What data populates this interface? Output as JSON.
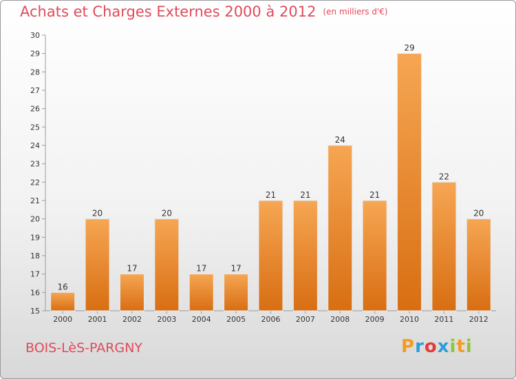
{
  "title": "Achats et Charges Externes 2000 à 2012",
  "unit": "(en milliers d'€)",
  "place": "BOIS-LèS-PARGNY",
  "logo": {
    "text": "Proxiti",
    "letters": [
      "P",
      "r",
      "o",
      "x",
      "i",
      "t",
      "i"
    ],
    "colors": [
      "#f59b1e",
      "#2a9fd6",
      "#e33b3b",
      "#2a9fd6",
      "#8cc63f",
      "#f59b1e",
      "#8cc63f"
    ]
  },
  "colors": {
    "bar_top": "#f6a653",
    "bar_bottom": "#d86e12",
    "axis": "#999999"
  },
  "chart_data": {
    "type": "bar",
    "categories": [
      "2000",
      "2001",
      "2002",
      "2003",
      "2004",
      "2005",
      "2006",
      "2007",
      "2008",
      "2009",
      "2010",
      "2011",
      "2012"
    ],
    "values": [
      16,
      20,
      17,
      20,
      17,
      17,
      21,
      21,
      24,
      21,
      29,
      22,
      20
    ],
    "ylim": [
      15,
      30
    ],
    "yticks": [
      15,
      16,
      17,
      18,
      19,
      20,
      21,
      22,
      23,
      24,
      25,
      26,
      27,
      28,
      29,
      30
    ],
    "grid": false,
    "xlabel": "",
    "ylabel": ""
  }
}
